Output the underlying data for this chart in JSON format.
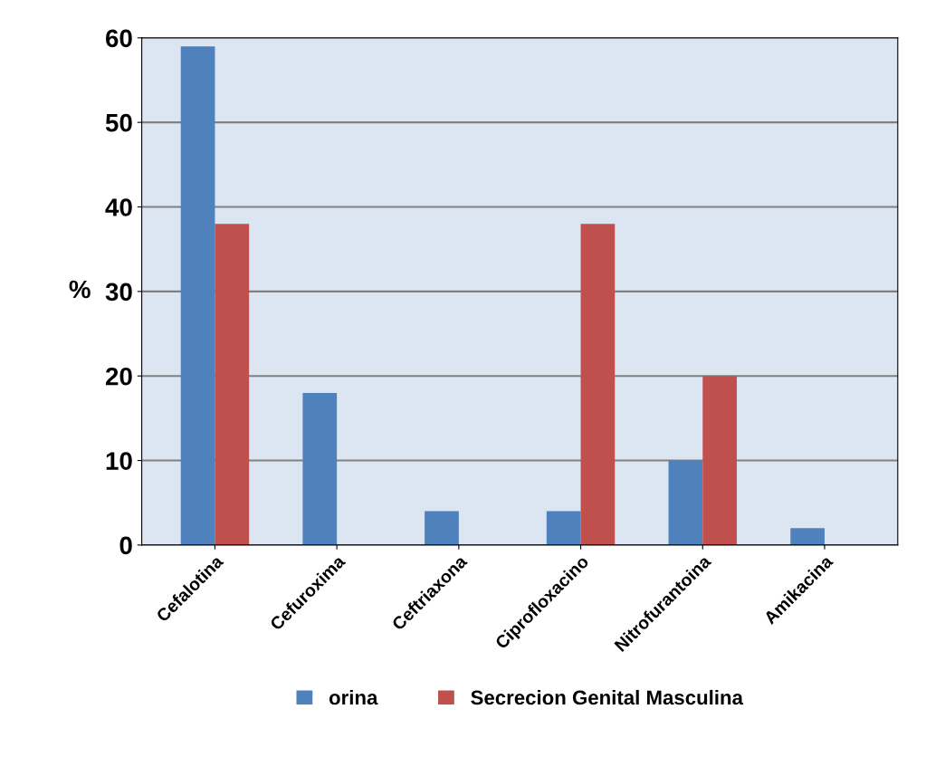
{
  "chart_data": {
    "type": "bar",
    "ylabel": "%",
    "categories": [
      "Cefalotina",
      "Cefuroxima",
      "Ceftriaxona",
      "Ciprofloxacino",
      "Nitrofurantoina",
      "Amikacina"
    ],
    "series": [
      {
        "name": "orina",
        "color": "#4f81bd",
        "values": [
          59,
          18,
          4,
          4,
          10,
          2
        ]
      },
      {
        "name": "Secrecion Genital Masculina",
        "color": "#c0504d",
        "values": [
          38,
          0,
          0,
          38,
          20,
          0
        ]
      }
    ],
    "ylim": [
      0,
      60
    ],
    "yticks": [
      0,
      10,
      20,
      30,
      40,
      50,
      60
    ],
    "grid": "y",
    "legend": "bottom"
  }
}
